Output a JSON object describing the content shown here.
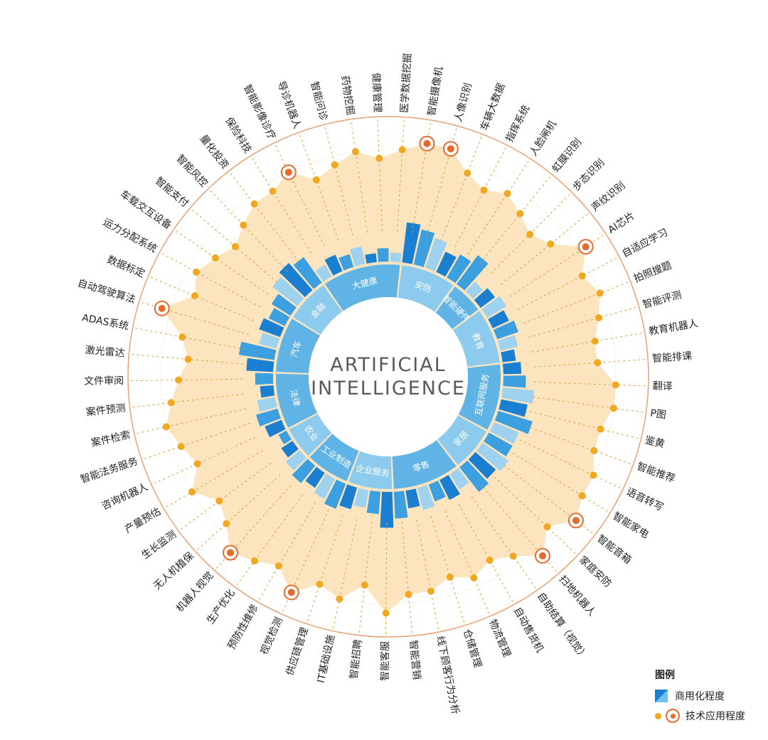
{
  "chart_data": {
    "type": "radial-bar-and-dot",
    "title_line1": "ARTIFICIAL",
    "title_line2": "INTELLIGENCE",
    "legend": {
      "title": "图例",
      "bar_label": "商用化程度",
      "dot_label": "技术应用程度"
    },
    "value_scale": "0-10 (relative, estimated)",
    "sectors": [
      {
        "name": "汽车",
        "items": [
          {
            "label": "激光雷达",
            "bar": 6,
            "dot": 5
          },
          {
            "label": "ADAS系统",
            "bar": 8,
            "dot": 6,
            "highlight": false
          },
          {
            "label": "自动驾驶算法",
            "bar": 4,
            "dot": 9,
            "highlight": true
          },
          {
            "label": "数据标定",
            "bar": 5,
            "dot": 6
          },
          {
            "label": "运力分配系统",
            "bar": 4,
            "dot": 7
          }
        ]
      },
      {
        "name": "金融",
        "items": [
          {
            "label": "车载交互设备",
            "bar": 5,
            "dot": 6
          },
          {
            "label": "智能支付",
            "bar": 7,
            "dot": 5
          },
          {
            "label": "智能风控",
            "bar": 8,
            "dot": 6
          },
          {
            "label": "量化投资",
            "bar": 7,
            "dot": 7
          }
        ]
      },
      {
        "name": "大健康",
        "items": [
          {
            "label": "保险科技",
            "bar": 3,
            "dot": 7
          },
          {
            "label": "智能影像诊疗",
            "bar": 4,
            "dot": 8,
            "highlight": true
          },
          {
            "label": "导诊机器人",
            "bar": 3,
            "dot": 6
          },
          {
            "label": "智能问诊",
            "bar": 4,
            "dot": 7
          },
          {
            "label": "药物挖掘",
            "bar": 2,
            "dot": 8
          },
          {
            "label": "健康管理",
            "bar": 3,
            "dot": 7
          },
          {
            "label": "医学数据挖掘",
            "bar": 2,
            "dot": 8
          }
        ]
      },
      {
        "name": "安防",
        "items": [
          {
            "label": "智能摄像机",
            "bar": 9,
            "dot": 9,
            "highlight": true
          },
          {
            "label": "人像识别",
            "bar": 8,
            "dot": 9,
            "highlight": true
          },
          {
            "label": "车辆大数据",
            "bar": 7,
            "dot": 7
          },
          {
            "label": "指挥系统",
            "bar": 5,
            "dot": 6
          },
          {
            "label": "人脸闸机",
            "bar": 6,
            "dot": 7
          }
        ]
      },
      {
        "name": "智能硬件",
        "items": [
          {
            "label": "虹膜识别",
            "bar": 8,
            "dot": 6
          },
          {
            "label": "步态识别",
            "bar": 3,
            "dot": 5
          },
          {
            "label": "声纹识别",
            "bar": 4,
            "dot": 6
          }
        ]
      },
      {
        "name": "教育",
        "items": [
          {
            "label": "AI芯片",
            "bar": 5,
            "dot": 9,
            "highlight": true
          },
          {
            "label": "自适应学习",
            "bar": 4,
            "dot": 7
          },
          {
            "label": "拍照搜题",
            "bar": 5,
            "dot": 8
          },
          {
            "label": "智能评测",
            "bar": 4,
            "dot": 7
          },
          {
            "label": "教育机器人",
            "bar": 3,
            "dot": 6
          }
        ]
      },
      {
        "name": "互联网服务",
        "items": [
          {
            "label": "智能排课",
            "bar": 4,
            "dot": 6
          },
          {
            "label": "翻译",
            "bar": 5,
            "dot": 8
          },
          {
            "label": "P图",
            "bar": 7,
            "dot": 8
          },
          {
            "label": "鉴黄",
            "bar": 6,
            "dot": 7
          },
          {
            "label": "智能推荐",
            "bar": 8,
            "dot": 7
          },
          {
            "label": "语音转写",
            "bar": 6,
            "dot": 8
          }
        ]
      },
      {
        "name": "家居",
        "items": [
          {
            "label": "智能家电",
            "bar": 6,
            "dot": 8
          },
          {
            "label": "智能音箱",
            "bar": 7,
            "dot": 9,
            "highlight": true
          },
          {
            "label": "家庭安防",
            "bar": 6,
            "dot": 7
          },
          {
            "label": "扫地机器人",
            "bar": 7,
            "dot": 9,
            "highlight": true
          }
        ]
      },
      {
        "name": "零售",
        "items": [
          {
            "label": "自助结算（视觉）",
            "bar": 4,
            "dot": 7
          },
          {
            "label": "自动售货机",
            "bar": 5,
            "dot": 6
          },
          {
            "label": "物流管理",
            "bar": 4,
            "dot": 7
          },
          {
            "label": "仓储管理",
            "bar": 5,
            "dot": 6
          },
          {
            "label": "线下顾客行为分析",
            "bar": 4,
            "dot": 7
          },
          {
            "label": "智能营销",
            "bar": 6,
            "dot": 7
          }
        ]
      },
      {
        "name": "企业服务",
        "items": [
          {
            "label": "智能客服",
            "bar": 8,
            "dot": 9
          },
          {
            "label": "智能招聘",
            "bar": 5,
            "dot": 6
          },
          {
            "label": "IT基础设施",
            "bar": 4,
            "dot": 8
          },
          {
            "label": "供应链管理",
            "bar": 5,
            "dot": 7
          }
        ]
      },
      {
        "name": "工业制造",
        "items": [
          {
            "label": "视觉检测",
            "bar": 6,
            "dot": 9,
            "highlight": true
          },
          {
            "label": "预防性维修",
            "bar": 5,
            "dot": 7
          },
          {
            "label": "生产优化",
            "bar": 4,
            "dot": 8
          },
          {
            "label": "机器人视觉",
            "bar": 5,
            "dot": 9,
            "highlight": true
          }
        ]
      },
      {
        "name": "农业",
        "items": [
          {
            "label": "无人机植保",
            "bar": 4,
            "dot": 7
          },
          {
            "label": "生长监测",
            "bar": 3,
            "dot": 6
          },
          {
            "label": "产量预估",
            "bar": 2,
            "dot": 8
          }
        ]
      },
      {
        "name": "法律",
        "items": [
          {
            "label": "咨询机器人",
            "bar": 4,
            "dot": 6
          },
          {
            "label": "智能法务服务",
            "bar": 5,
            "dot": 7
          },
          {
            "label": "案件检索",
            "bar": 4,
            "dot": 8
          },
          {
            "label": "案件预测",
            "bar": 3,
            "dot": 7
          },
          {
            "label": "文件审阅",
            "bar": 4,
            "dot": 6
          }
        ]
      }
    ],
    "colors": {
      "bar_dark": "#1a7fd0",
      "bar_mid": "#3b9fe0",
      "bar_light": "#9fd2ee",
      "sector_ring": "#5fb4e5",
      "dot": "#f0a820",
      "dot_area": "#fbe0b3",
      "leader": "#d9a03c",
      "highlight_ring": "#e8692a",
      "outer_ring": "#e7a275",
      "title": "#5a5a5a"
    }
  }
}
